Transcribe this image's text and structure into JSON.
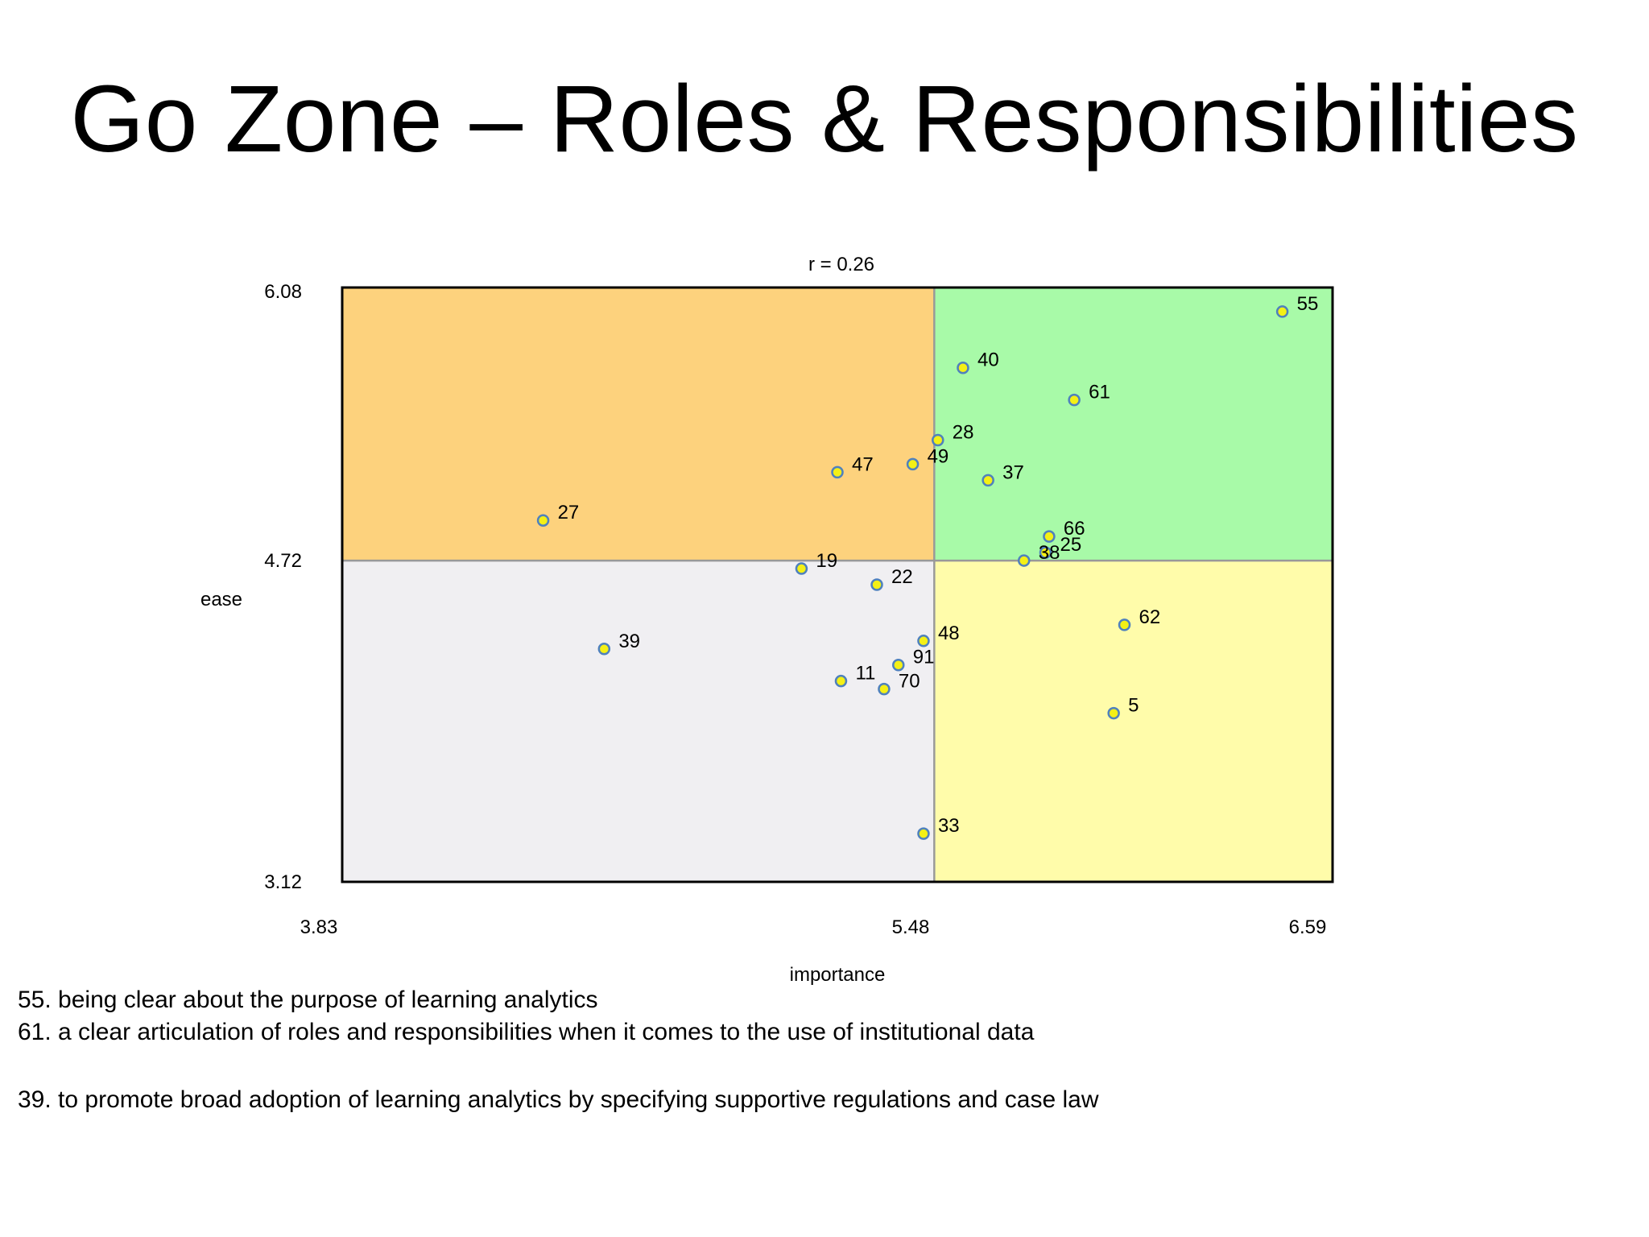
{
  "title": "Go Zone – Roles & Responsibilities",
  "colors": {
    "upper_left": "#FDD27D",
    "upper_right": "#A8FAA8",
    "lower_left": "#F0EFF2",
    "lower_right": "#FFFCAA",
    "point_fill": "#F4F016",
    "point_stroke": "#4F81BD",
    "divider": "#999999",
    "frame": "#000000"
  },
  "chart_data": {
    "type": "scatter",
    "title": "r = 0.26",
    "xlabel": "importance",
    "ylabel": "ease",
    "xlim": [
      3.83,
      6.59
    ],
    "ylim": [
      3.12,
      6.08
    ],
    "x_ticks": [
      "3.83",
      "5.48",
      "6.59"
    ],
    "y_ticks": [
      "3.12",
      "4.72",
      "6.08"
    ],
    "x_split": 5.48,
    "y_split": 4.72,
    "grid": false,
    "points": [
      {
        "label": "55",
        "x": 6.45,
        "y": 5.96
      },
      {
        "label": "40",
        "x": 5.56,
        "y": 5.68
      },
      {
        "label": "61",
        "x": 5.87,
        "y": 5.52
      },
      {
        "label": "28",
        "x": 5.49,
        "y": 5.32
      },
      {
        "label": "49",
        "x": 5.42,
        "y": 5.2
      },
      {
        "label": "47",
        "x": 5.21,
        "y": 5.16
      },
      {
        "label": "37",
        "x": 5.63,
        "y": 5.12
      },
      {
        "label": "27",
        "x": 4.39,
        "y": 4.92
      },
      {
        "label": "66",
        "x": 5.8,
        "y": 4.84
      },
      {
        "label": "25",
        "x": 5.79,
        "y": 4.76
      },
      {
        "label": "38",
        "x": 5.73,
        "y": 4.72
      },
      {
        "label": "19",
        "x": 5.11,
        "y": 4.68
      },
      {
        "label": "22",
        "x": 5.32,
        "y": 4.6
      },
      {
        "label": "48",
        "x": 5.45,
        "y": 4.32
      },
      {
        "label": "62",
        "x": 6.01,
        "y": 4.4
      },
      {
        "label": "39",
        "x": 4.56,
        "y": 4.28
      },
      {
        "label": "91",
        "x": 5.38,
        "y": 4.2
      },
      {
        "label": "11",
        "x": 5.22,
        "y": 4.12
      },
      {
        "label": "70",
        "x": 5.34,
        "y": 4.08
      },
      {
        "label": "5",
        "x": 5.98,
        "y": 3.96
      },
      {
        "label": "33",
        "x": 5.45,
        "y": 3.36
      }
    ]
  },
  "notes": {
    "line1": "55. being clear about the purpose of learning analytics",
    "line2": "61. a clear articulation of roles and responsibilities when it comes to the use of institutional data",
    "line3": "39. to promote broad adoption of learning analytics by specifying supportive regulations and case law"
  }
}
